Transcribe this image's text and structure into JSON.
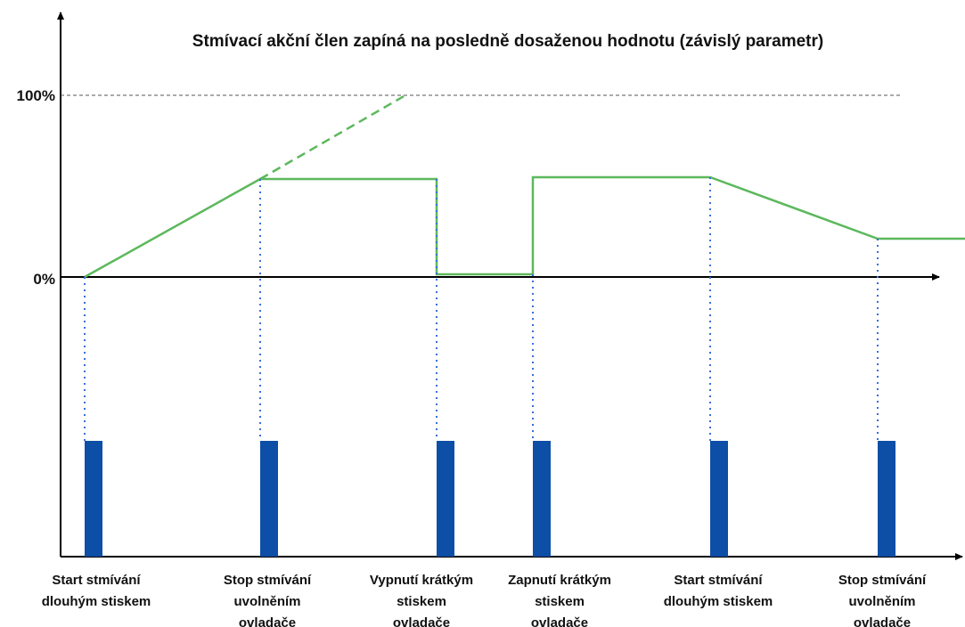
{
  "title": "Stmívací akční člen zapíná na posledně dosaženou hodnotu (závislý parametr)",
  "y_labels": [
    "100%",
    "0%"
  ],
  "events": [
    {
      "lines": [
        "Start stmívání",
        "dlouhým stiskem"
      ]
    },
    {
      "lines": [
        "Stop stmívání",
        "uvolněním",
        "ovladače"
      ]
    },
    {
      "lines": [
        "Vypnutí krátkým",
        "stiskem",
        "ovladače"
      ]
    },
    {
      "lines": [
        "Zapnutí krátkým",
        "stiskem",
        "ovladače"
      ]
    },
    {
      "lines": [
        "Start stmívání",
        "dlouhým stiskem"
      ]
    },
    {
      "lines": [
        "Stop stmívání",
        "uvolněním",
        "ovladače"
      ]
    }
  ]
}
